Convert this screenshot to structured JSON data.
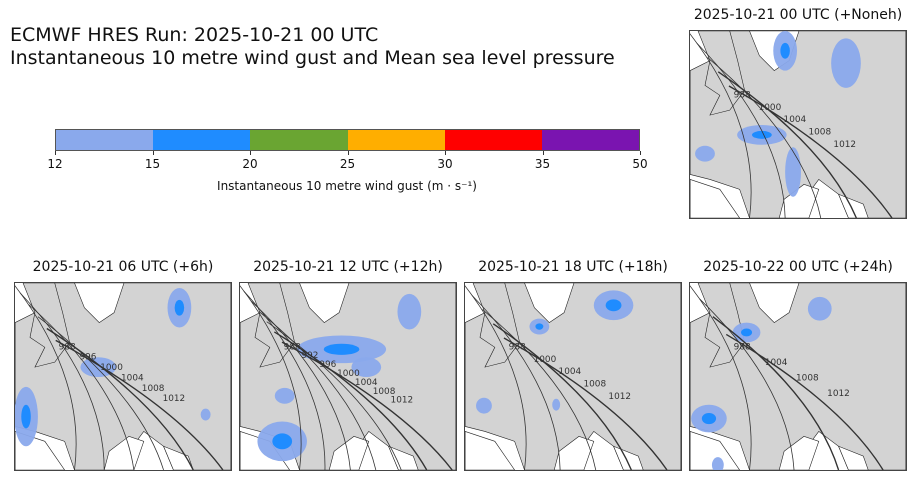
{
  "header": {
    "title_line1": "ECMWF HRES Run: 2025-10-21 00 UTC",
    "title_line2": "Instantaneous 10 metre wind gust and Mean sea level pressure"
  },
  "colorbar": {
    "label": "Instantaneous 10 metre wind gust (m · s⁻¹)",
    "ticks": [
      "12",
      "15",
      "20",
      "25",
      "30",
      "35",
      "50"
    ],
    "colors": [
      "#8aa9ec",
      "#1f8cff",
      "#6aa532",
      "#ffae00",
      "#ff0000",
      "#7a14b0"
    ],
    "land_color": "#d3d3d3"
  },
  "panels": [
    {
      "title": "2025-10-21 00 UTC (+Noneh)",
      "isobars": [
        "988",
        "1000",
        "1004",
        "1008",
        "1012"
      ]
    },
    {
      "title": "2025-10-21 06 UTC (+6h)",
      "isobars": [
        "988",
        "996",
        "1000",
        "1004",
        "1008",
        "1012"
      ]
    },
    {
      "title": "2025-10-21 12 UTC (+12h)",
      "isobars": [
        "988",
        "992",
        "996",
        "1000",
        "1004",
        "1008",
        "1012"
      ]
    },
    {
      "title": "2025-10-21 18 UTC (+18h)",
      "isobars": [
        "988",
        "1000",
        "1004",
        "1008",
        "1012"
      ]
    },
    {
      "title": "2025-10-22 00 UTC (+24h)",
      "isobars": [
        "988",
        "1004",
        "1008",
        "1012"
      ]
    }
  ]
}
